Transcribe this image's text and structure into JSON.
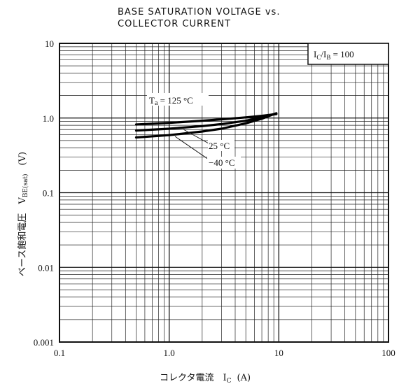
{
  "chart_data": {
    "type": "line",
    "title_lines": [
      "BASE SATURATION VOLTAGE vs.",
      "COLLECTOR CURRENT"
    ],
    "xlabel": "コレクタ電流　I",
    "xlabel_sub": "C",
    "xlabel_unit": "(A)",
    "ylabel": "ベース飽和電圧　V",
    "ylabel_sub": "BE(sat)",
    "ylabel_unit": "(V)",
    "xscale": "log",
    "yscale": "log",
    "xlim": [
      0.1,
      100
    ],
    "ylim": [
      0.001,
      10
    ],
    "x_ticks": [
      {
        "value": 0.1,
        "label": "0.1"
      },
      {
        "value": 1,
        "label": "1.0"
      },
      {
        "value": 10,
        "label": "10"
      },
      {
        "value": 100,
        "label": "100"
      }
    ],
    "y_ticks": [
      {
        "value": 10,
        "label": "10"
      },
      {
        "value": 1,
        "label": "1.0"
      },
      {
        "value": 0.1,
        "label": "0.1"
      },
      {
        "value": 0.01,
        "label": "0.01"
      },
      {
        "value": 0.001,
        "label": "0.001"
      }
    ],
    "grid": true,
    "legend_box": {
      "parts": [
        {
          "text": "I",
          "sub": false
        },
        {
          "text": "C",
          "sub": true
        },
        {
          "text": "/I",
          "sub": false
        },
        {
          "text": "B",
          "sub": true
        },
        {
          "text": " = 100",
          "sub": false
        }
      ],
      "placement": "top-right"
    },
    "series": [
      {
        "name": "Ta = 125 °C",
        "x": [
          0.5,
          1,
          2,
          3,
          5,
          7,
          9.5
        ],
        "y": [
          0.82,
          0.86,
          0.92,
          0.96,
          1.02,
          1.07,
          1.13
        ]
      },
      {
        "name": "25 °C",
        "x": [
          0.5,
          1,
          2,
          3,
          5,
          7,
          9.5
        ],
        "y": [
          0.68,
          0.72,
          0.78,
          0.83,
          0.92,
          1.02,
          1.15
        ]
      },
      {
        "name": "−40 °C",
        "x": [
          0.5,
          1,
          2,
          3,
          5,
          7,
          9.5
        ],
        "y": [
          0.55,
          0.59,
          0.66,
          0.72,
          0.85,
          0.98,
          1.16
        ]
      }
    ],
    "annotations": [
      {
        "text": "T",
        "sub": "a",
        "rest": " = 125 °C"
      },
      {
        "text": "25 °C"
      },
      {
        "text": "−40 °C"
      }
    ]
  }
}
